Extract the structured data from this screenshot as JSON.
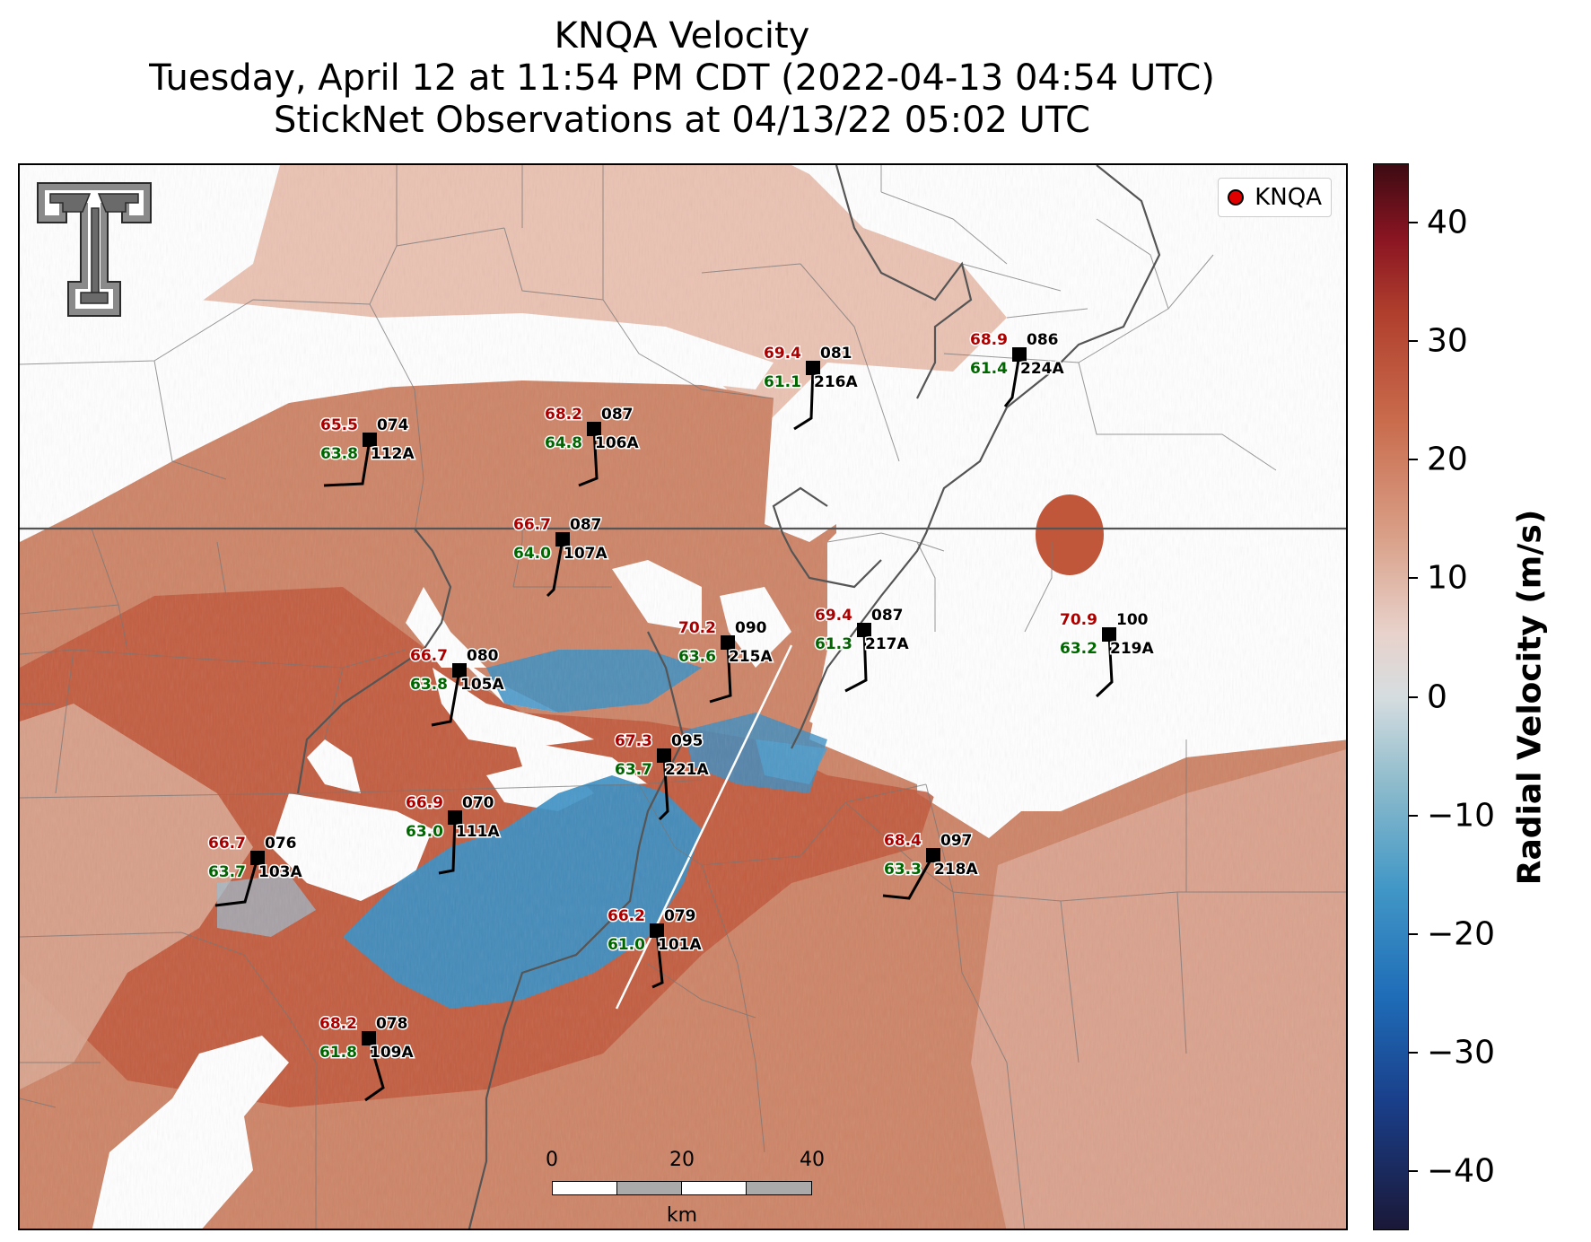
{
  "title": {
    "line1": "KNQA Velocity",
    "line2": "Tuesday, April 12 at 11:54 PM CDT (2022-04-13 04:54 UTC)",
    "line3": "StickNet Observations at 04/13/22 05:02 UTC"
  },
  "legend": {
    "label": "KNQA",
    "marker_color": "#e00000"
  },
  "scalebar": {
    "ticks": [
      "0",
      "20",
      "40"
    ],
    "unit": "km"
  },
  "colorbar": {
    "label": "Radial Velocity (m/s)",
    "ticks": [
      "40",
      "30",
      "20",
      "10",
      "0",
      "−10",
      "−20",
      "−30",
      "−40"
    ],
    "range": [
      -45,
      45
    ],
    "colors": {
      "max": "#3d0b12",
      "positive": "#c96b4c",
      "zero": "#d6dde0",
      "negative": "#4197c6",
      "min": "#1a1838"
    }
  },
  "colors": {
    "temperature": "#aa0000",
    "dewpoint": "#006600",
    "station": "#000000"
  },
  "stations": [
    {
      "id": "112A",
      "temp": "65.5",
      "dew": "63.8",
      "dir": "074"
    },
    {
      "id": "106A",
      "temp": "68.2",
      "dew": "64.8",
      "dir": "087"
    },
    {
      "id": "216A",
      "temp": "69.4",
      "dew": "61.1",
      "dir": "081"
    },
    {
      "id": "224A",
      "temp": "68.9",
      "dew": "61.4",
      "dir": "086"
    },
    {
      "id": "107A",
      "temp": "66.7",
      "dew": "64.0",
      "dir": "087"
    },
    {
      "id": "215A",
      "temp": "70.2",
      "dew": "63.6",
      "dir": "090"
    },
    {
      "id": "217A",
      "temp": "69.4",
      "dew": "61.3",
      "dir": "087"
    },
    {
      "id": "219A",
      "temp": "70.9",
      "dew": "63.2",
      "dir": "100"
    },
    {
      "id": "105A",
      "temp": "66.7",
      "dew": "63.8",
      "dir": "080"
    },
    {
      "id": "221A",
      "temp": "67.3",
      "dew": "63.7",
      "dir": "095"
    },
    {
      "id": "111A",
      "temp": "66.9",
      "dew": "63.0",
      "dir": "070"
    },
    {
      "id": "103A",
      "temp": "66.7",
      "dew": "63.7",
      "dir": "076"
    },
    {
      "id": "218A",
      "temp": "68.4",
      "dew": "63.3",
      "dir": "097"
    },
    {
      "id": "101A",
      "temp": "66.2",
      "dew": "61.0",
      "dir": "079"
    },
    {
      "id": "109A",
      "temp": "68.2",
      "dew": "61.8",
      "dir": "078"
    }
  ]
}
